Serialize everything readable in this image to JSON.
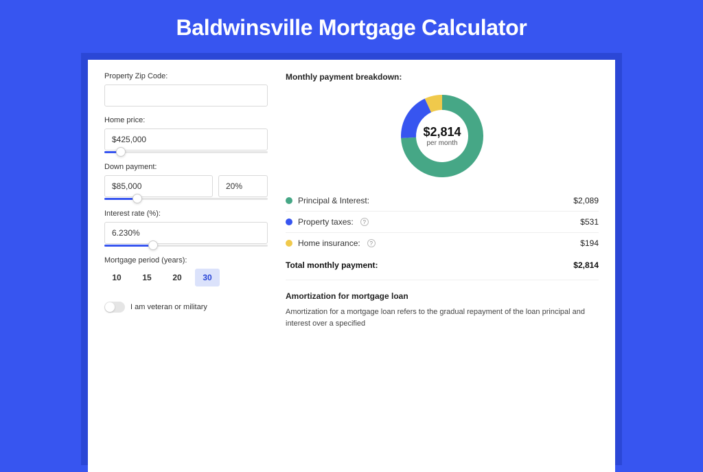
{
  "page": {
    "title": "Baldwinsville Mortgage Calculator",
    "background": "#3755f0",
    "frame_background": "#2b47d6",
    "card_background": "#ffffff"
  },
  "form": {
    "zip": {
      "label": "Property Zip Code:",
      "value": ""
    },
    "home_price": {
      "label": "Home price:",
      "value": "$425,000",
      "slider_pct": 10
    },
    "down_payment": {
      "label": "Down payment:",
      "value": "$85,000",
      "pct_value": "20%",
      "slider_pct": 20
    },
    "interest_rate": {
      "label": "Interest rate (%):",
      "value": "6.230%",
      "slider_pct": 30
    },
    "period": {
      "label": "Mortgage period (years):",
      "options": [
        "10",
        "15",
        "20",
        "30"
      ],
      "selected": "30"
    },
    "veteran": {
      "label": "I am veteran or military",
      "checked": false
    }
  },
  "breakdown": {
    "title": "Monthly payment breakdown:",
    "center_amount": "$2,814",
    "center_sub": "per month",
    "donut": {
      "outer_radius": 60,
      "inner_radius": 38,
      "slices": [
        {
          "label": "Principal & Interest",
          "value": 2089,
          "color": "#46a786",
          "pct": 74.2
        },
        {
          "label": "Property taxes",
          "value": 531,
          "color": "#3755f0",
          "pct": 18.9
        },
        {
          "label": "Home insurance",
          "value": 194,
          "color": "#f0c94b",
          "pct": 6.9
        }
      ]
    },
    "legend": [
      {
        "label": "Principal & Interest:",
        "value": "$2,089",
        "color": "#46a786",
        "help": false
      },
      {
        "label": "Property taxes:",
        "value": "$531",
        "color": "#3755f0",
        "help": true
      },
      {
        "label": "Home insurance:",
        "value": "$194",
        "color": "#f0c94b",
        "help": true
      }
    ],
    "total": {
      "label": "Total monthly payment:",
      "value": "$2,814"
    }
  },
  "amortization": {
    "title": "Amortization for mortgage loan",
    "text": "Amortization for a mortgage loan refers to the gradual repayment of the loan principal and interest over a specified"
  },
  "styling": {
    "input_border": "#d9d9d9",
    "slider_rail": "#e5e5e5",
    "slider_fill": "#3755f0",
    "period_active_bg": "#dbe2fb",
    "period_active_fg": "#2b47d6",
    "divider": "#eeeeee",
    "label_fontsize": 11,
    "value_fontsize": 12
  }
}
